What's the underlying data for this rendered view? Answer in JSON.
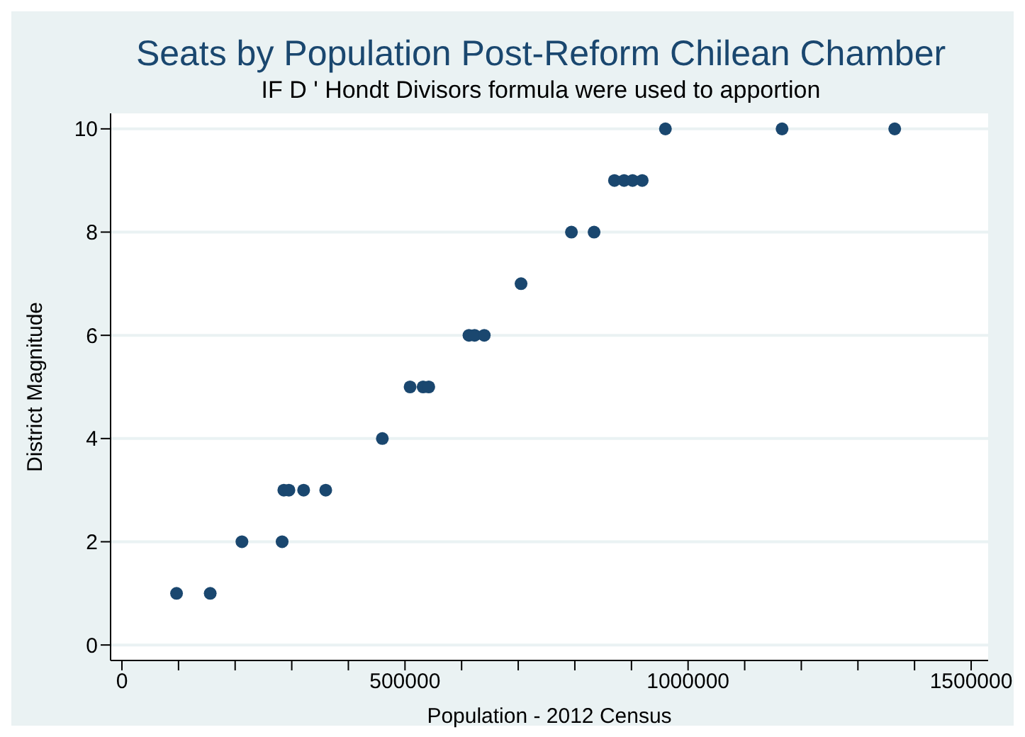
{
  "chart_data": {
    "type": "scatter",
    "title": "Seats by Population Post-Reform Chilean Chamber",
    "subtitle": "IF D ' Hondt Divisors formula were used to apportion",
    "xlabel": "Population - 2012 Census",
    "ylabel": "District Magnitude",
    "x": [
      96500,
      156000,
      212000,
      283000,
      286000,
      295000,
      321000,
      360000,
      460000,
      509000,
      532000,
      542000,
      613000,
      623000,
      640000,
      705000,
      794000,
      834000,
      870000,
      887000,
      902000,
      919000,
      960000,
      1166000,
      1365000
    ],
    "series": [
      {
        "color": "#1a476f",
        "values": [
          1,
          1,
          2,
          2,
          3,
          3,
          3,
          3,
          4,
          5,
          5,
          5,
          6,
          6,
          6,
          7,
          8,
          8,
          9,
          9,
          9,
          9,
          10,
          10,
          10
        ]
      }
    ],
    "xlim": [
      -20000,
      1530000
    ],
    "xticks": [
      0,
      {
        "value": 100000,
        "label": null
      },
      {
        "value": 200000,
        "label": null
      },
      {
        "value": 300000,
        "label": null
      },
      {
        "value": 400000,
        "label": null
      },
      500000,
      {
        "value": 600000,
        "label": null
      },
      {
        "value": 700000,
        "label": null
      },
      {
        "value": 800000,
        "label": null
      },
      {
        "value": 900000,
        "label": null
      },
      1000000,
      {
        "value": 1100000,
        "label": null
      },
      {
        "value": 1200000,
        "label": null
      },
      {
        "value": 1300000,
        "label": null
      },
      {
        "value": 1400000,
        "label": null
      },
      1500000
    ],
    "ylim": [
      -0.3,
      10.3
    ],
    "yticks": [
      0,
      2,
      4,
      6,
      8,
      10
    ],
    "grid": "y",
    "marker": "circle"
  }
}
